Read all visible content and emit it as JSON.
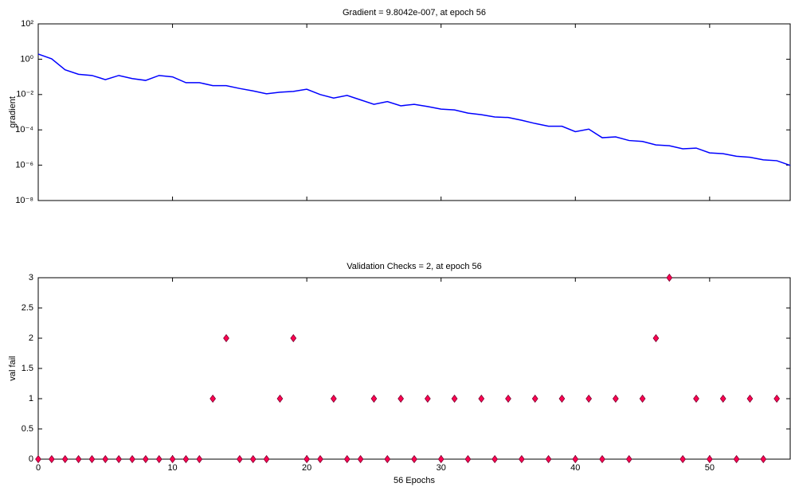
{
  "chart_data": [
    {
      "type": "line",
      "title": "Gradient = 9.8042e-007, at epoch 56",
      "ylabel": "gradient",
      "x": [
        0,
        1,
        2,
        3,
        4,
        5,
        6,
        7,
        8,
        9,
        10,
        11,
        12,
        13,
        14,
        15,
        16,
        17,
        18,
        19,
        20,
        21,
        22,
        23,
        24,
        25,
        26,
        27,
        28,
        29,
        30,
        31,
        32,
        33,
        34,
        35,
        36,
        37,
        38,
        39,
        40,
        41,
        42,
        43,
        44,
        45,
        46,
        47,
        48,
        49,
        50,
        51,
        52,
        53,
        54,
        55,
        56
      ],
      "values": [
        1.95,
        1.05,
        0.25,
        0.14,
        0.12,
        0.07,
        0.12,
        0.08,
        0.063,
        0.12,
        0.1,
        0.047,
        0.047,
        0.032,
        0.032,
        0.022,
        0.016,
        0.011,
        0.0135,
        0.015,
        0.02,
        0.01,
        0.0063,
        0.0089,
        0.005,
        0.0028,
        0.004,
        0.0023,
        0.0028,
        0.0021,
        0.0015,
        0.00135,
        0.00089,
        0.00072,
        0.00054,
        0.0005,
        0.00035,
        0.00023,
        0.00016,
        0.00016,
        7.9e-05,
        0.00011,
        3.6e-05,
        4e-05,
        2.5e-05,
        2.2e-05,
        1.4e-05,
        1.26e-05,
        8.5e-06,
        9.3e-06,
        5e-06,
        4.5e-06,
        3.2e-06,
        2.8e-06,
        2e-06,
        1.8e-06,
        9.8042e-07
      ],
      "color": "#0000ff",
      "log_y": true,
      "xlim": [
        0,
        56
      ],
      "xticks": [
        0,
        10,
        20,
        30,
        40,
        50
      ],
      "show_xtick_labels": false,
      "ylim": [
        1e-08,
        100
      ],
      "yticks": [
        {
          "value": 1e-08,
          "label": "10⁻⁸"
        },
        {
          "value": 1e-06,
          "label": "10⁻⁶"
        },
        {
          "value": 0.0001,
          "label": "10⁻⁴"
        },
        {
          "value": 0.01,
          "label": "10⁻²"
        },
        {
          "value": 1,
          "label": "10⁰"
        },
        {
          "value": 100,
          "label": "10²"
        }
      ],
      "grid": false
    },
    {
      "type": "scatter",
      "title": "Validation Checks = 2, at epoch 56",
      "ylabel": "val fail",
      "xlabel": "56 Epochs",
      "x": [
        0,
        1,
        2,
        3,
        4,
        5,
        6,
        7,
        8,
        9,
        10,
        11,
        12,
        13,
        14,
        15,
        16,
        17,
        18,
        19,
        20,
        21,
        22,
        23,
        24,
        25,
        26,
        27,
        28,
        29,
        30,
        31,
        32,
        33,
        34,
        35,
        36,
        37,
        38,
        39,
        40,
        41,
        42,
        43,
        44,
        45,
        46,
        47,
        48,
        49,
        50,
        51,
        52,
        53,
        54,
        55
      ],
      "values": [
        0,
        0,
        0,
        0,
        0,
        0,
        0,
        0,
        0,
        0,
        0,
        0,
        0,
        1,
        2,
        0,
        0,
        0,
        1,
        2,
        0,
        0,
        1,
        0,
        0,
        1,
        0,
        1,
        0,
        1,
        0,
        1,
        0,
        1,
        0,
        1,
        0,
        1,
        0,
        1,
        0,
        1,
        0,
        1,
        0,
        1,
        2,
        3,
        0,
        1,
        0,
        1,
        0,
        1,
        0,
        1
      ],
      "color": "#ff0050",
      "edge_color": "#7a0030",
      "log_y": false,
      "xlim": [
        0,
        56
      ],
      "xticks": [
        0,
        10,
        20,
        30,
        40,
        50
      ],
      "show_xtick_labels": true,
      "ylim": [
        0,
        3
      ],
      "yticks": [
        0,
        0.5,
        1,
        1.5,
        2,
        2.5,
        3
      ],
      "grid": false
    }
  ]
}
